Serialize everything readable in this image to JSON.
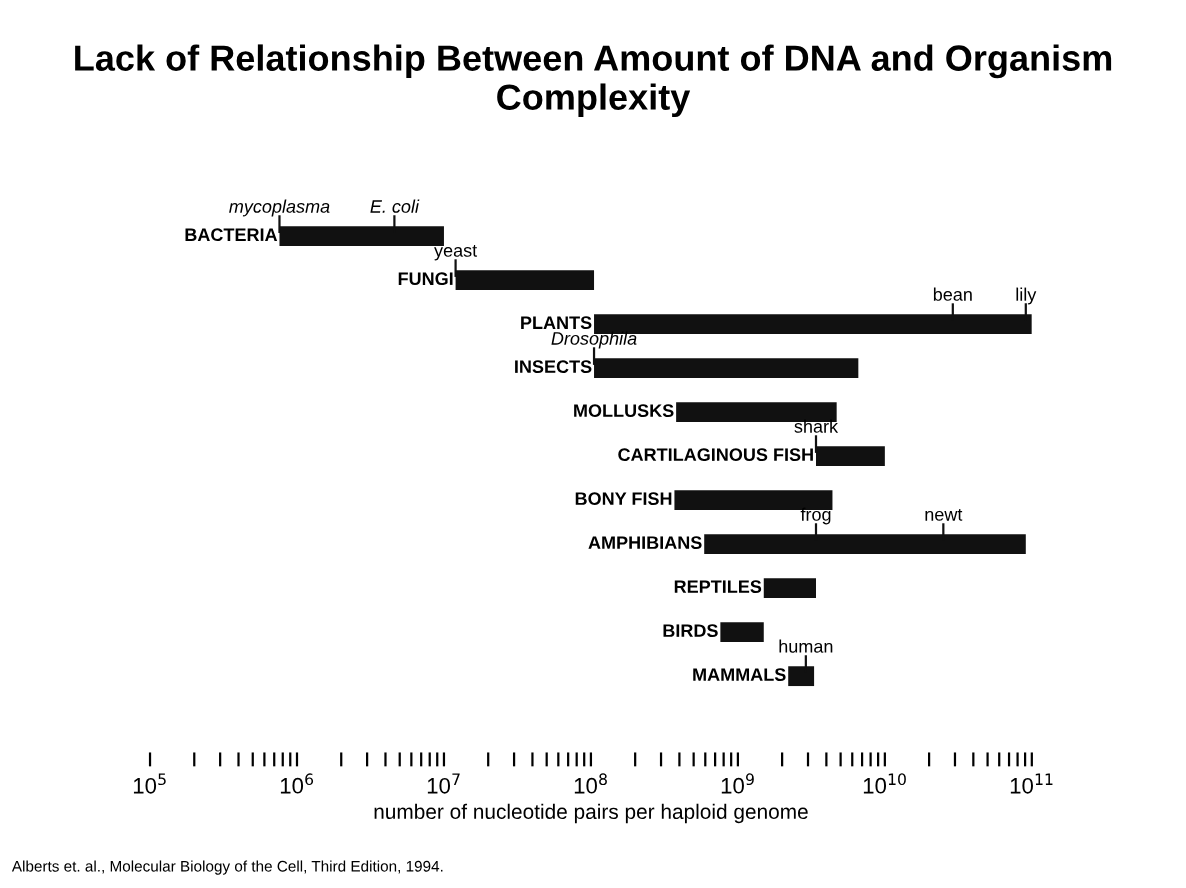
{
  "chart_data": {
    "type": "bar",
    "orientation": "horizontal",
    "log": "x",
    "title": "Lack of Relationship Between Amount of DNA and Organism Complexity",
    "xlabel": "number of nucleotide pairs per haploid genome",
    "categories": [
      "BACTERIA",
      "FUNGI",
      "PLANTS",
      "INSECTS",
      "MOLLUSKS",
      "CARTILAGINOUS FISH",
      "BONY FISH",
      "AMPHIBIANS",
      "REPTILES",
      "BIRDS",
      "MAMMALS"
    ],
    "base": [
      760000,
      12000000,
      105000000,
      105000000,
      380000000,
      3400000000,
      370000000,
      590000000,
      1500000000,
      760000000,
      2200000000
    ],
    "values": [
      9240000,
      93000000,
      99895000000,
      6495000000,
      4320000000,
      6600000000,
      4030000000,
      90410000000,
      1900000000,
      740000000,
      1100000000
    ],
    "color": "#111111",
    "xlim": [
      100000,
      100000000000
    ],
    "xticks": [
      {
        "value": 100000,
        "label": "10$^{5}$"
      },
      {
        "value": 1000000,
        "label": "10$^{6}$"
      },
      {
        "value": 10000000,
        "label": "10$^{7}$"
      },
      {
        "value": 100000000,
        "label": "10$^{8}$"
      },
      {
        "value": 1000000000,
        "label": "10$^{9}$"
      },
      {
        "value": 10000000000,
        "label": "10$^{10}$"
      },
      {
        "value": 100000000000,
        "label": "10$^{11}$"
      }
    ],
    "grid": false,
    "annotations": [
      {
        "text": "mycoplasma",
        "x": 760000,
        "y": "BACTERIA"
      },
      {
        "text": "E. coli",
        "x": 4600000,
        "y": "BACTERIA"
      },
      {
        "text": "yeast",
        "x": 12000000,
        "y": "FUNGI"
      },
      {
        "text": "bean",
        "x": 29000000000,
        "y": "PLANTS"
      },
      {
        "text": "lily",
        "x": 91000000000,
        "y": "PLANTS"
      },
      {
        "text": "Drosophila",
        "x": 105000000,
        "y": "INSECTS"
      },
      {
        "text": "shark",
        "x": 3400000000,
        "y": "CARTILAGINOUS FISH"
      },
      {
        "text": "frog",
        "x": 3400000000,
        "y": "AMPHIBIANS"
      },
      {
        "text": "newt",
        "x": 25000000000,
        "y": "AMPHIBIANS"
      },
      {
        "text": "human",
        "x": 2900000000,
        "y": "MAMMALS"
      },
      "Alberts et. al., Molecular Biology of the Cell, Third Edition, 1994."
    ]
  }
}
